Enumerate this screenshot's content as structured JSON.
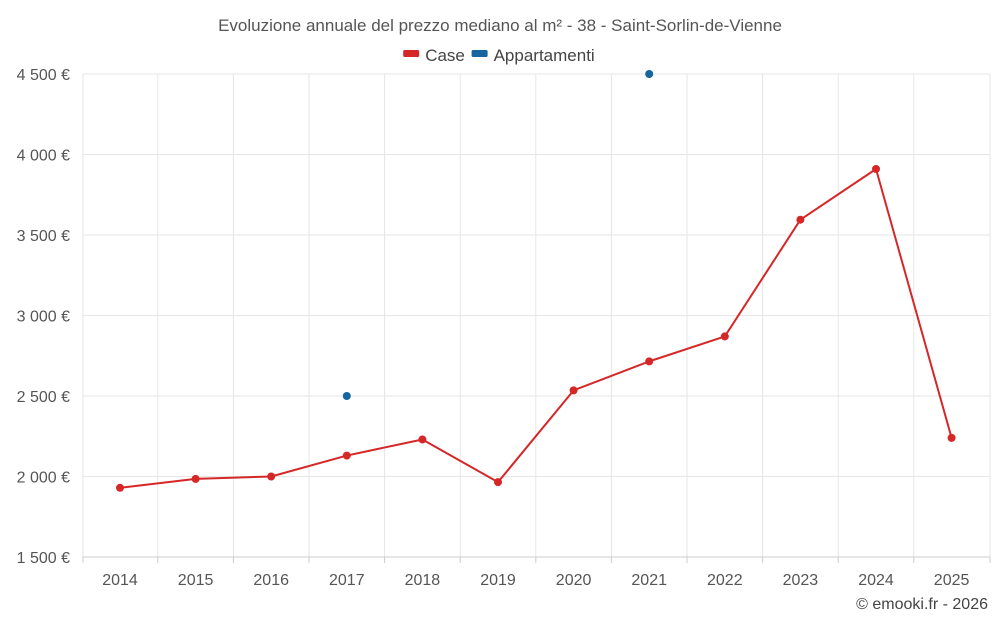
{
  "chart_data": {
    "type": "line",
    "title": "Evoluzione annuale del prezzo mediano al m² - 38 - Saint-Sorlin-de-Vienne",
    "xlabel": "",
    "ylabel": "",
    "categories": [
      "2014",
      "2015",
      "2016",
      "2017",
      "2018",
      "2019",
      "2020",
      "2021",
      "2022",
      "2023",
      "2024",
      "2025"
    ],
    "ylim": [
      1500,
      4500
    ],
    "yticks": [
      1500,
      2000,
      2500,
      3000,
      3500,
      4000,
      4500
    ],
    "ytick_labels": [
      "1 500 €",
      "2 000 €",
      "2 500 €",
      "3 000 €",
      "3 500 €",
      "4 000 €",
      "4 500 €"
    ],
    "grid": true,
    "legend_position": "top-center",
    "series": [
      {
        "name": "Case",
        "color": "#d62728",
        "values": [
          1930,
          1985,
          2000,
          2130,
          2230,
          1965,
          2535,
          2715,
          2870,
          3595,
          3910,
          2240
        ]
      },
      {
        "name": "Appartamenti",
        "color": "#1565a0",
        "values": [
          null,
          null,
          null,
          2500,
          null,
          null,
          null,
          4500,
          null,
          null,
          null,
          null
        ]
      }
    ]
  },
  "credit": "© emooki.fr - 2026"
}
